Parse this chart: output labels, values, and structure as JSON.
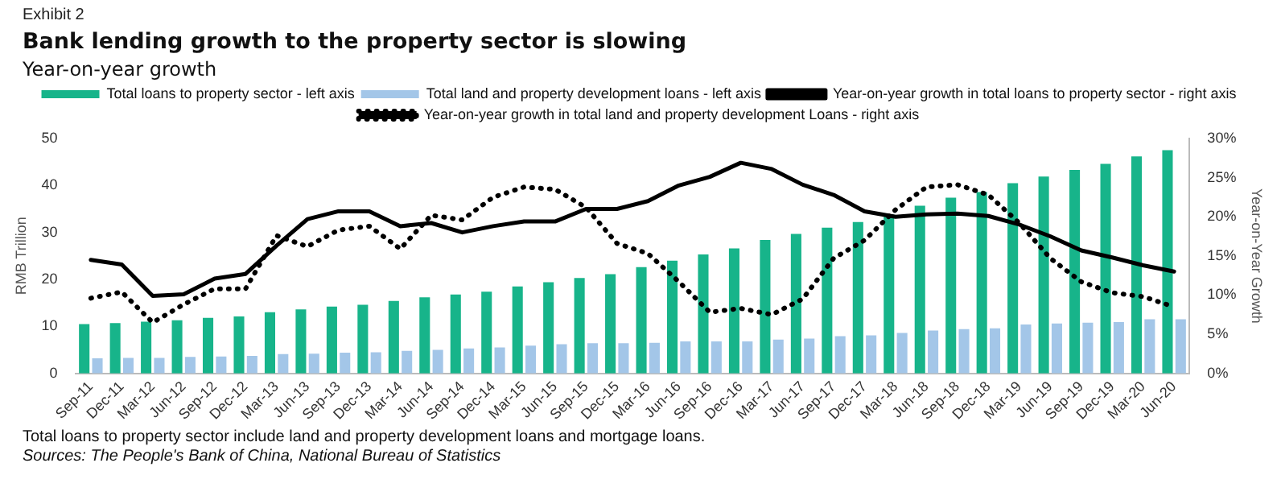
{
  "chart_data": {
    "type": "bar",
    "title": "Bank lending growth to the property sector is slowing",
    "subtitle": "Year-on-year growth",
    "ylabel": "RMB Trillion",
    "y2label": "Year-on-Year Growth",
    "annotations": [
      "Exhibit 2",
      "Total loans to property sector include land and property development loans and mortgage loans.",
      "Sources: The People's Bank of China, National Bureau of Statistics"
    ],
    "categories": [
      "Sep-11",
      "Dec-11",
      "Mar-12",
      "Jun-12",
      "Sep-12",
      "Dec-12",
      "Mar-13",
      "Jun-13",
      "Sep-13",
      "Dec-13",
      "Mar-14",
      "Jun-14",
      "Sep-14",
      "Dec-14",
      "Mar-15",
      "Jun-15",
      "Sep-15",
      "Dec-15",
      "Mar-16",
      "Jun-16",
      "Sep-16",
      "Dec-16",
      "Mar-17",
      "Jun-17",
      "Sep-17",
      "Dec-17",
      "Mar-18",
      "Jun-18",
      "Sep-18",
      "Dec-18",
      "Mar-19",
      "Jun-19",
      "Sep-19",
      "Dec-19",
      "Mar-20",
      "Jun-20"
    ],
    "series": [
      {
        "name": "Total loans to property sector - left axis",
        "color": "#17b48a",
        "values": [
          10.5,
          10.7,
          11,
          11.3,
          11.8,
          12.1,
          13,
          13.6,
          14.2,
          14.6,
          15.4,
          16.2,
          16.8,
          17.4,
          18.5,
          19.4,
          20.3,
          21.1,
          22.6,
          24,
          25.3,
          26.6,
          28.4,
          29.7,
          31,
          32.2,
          33.8,
          35.7,
          37.4,
          38.6,
          40.5,
          41.9,
          43.3,
          44.6,
          46.2,
          47.5
        ]
      },
      {
        "name": "Total land and property development loans - left axis",
        "color": "#a3c6e8",
        "values": [
          3.2,
          3.3,
          3.3,
          3.5,
          3.6,
          3.7,
          4.1,
          4.2,
          4.4,
          4.5,
          4.8,
          5,
          5.3,
          5.5,
          5.9,
          6.2,
          6.4,
          6.4,
          6.5,
          6.8,
          6.8,
          6.8,
          7.2,
          7.4,
          7.9,
          8.1,
          8.6,
          9.1,
          9.4,
          9.6,
          10.4,
          10.6,
          10.8,
          10.9,
          11.5,
          11.5
        ]
      },
      {
        "name": "Year-on-year growth in total loans to property sector - right axis",
        "type": "line",
        "axis": "y2",
        "color": "#000000",
        "line_style": "solid",
        "values": [
          14.5,
          13.9,
          9.9,
          10.1,
          12.1,
          12.7,
          16.3,
          19.7,
          20.7,
          20.7,
          18.8,
          19.2,
          18,
          18.8,
          19.4,
          19.4,
          21,
          21,
          22,
          24,
          25.1,
          26.9,
          26.1,
          24.1,
          22.8,
          20.7,
          20,
          20.3,
          20.4,
          20.1,
          19,
          17.5,
          15.7,
          14.8,
          13.8,
          13
        ]
      },
      {
        "name": "Year-on-year growth in total land and property development Loans - right axis",
        "type": "line",
        "axis": "y2",
        "color": "#000000",
        "line_style": "dotted",
        "values": [
          9.6,
          10.4,
          6.5,
          8.8,
          10.8,
          10.8,
          17.6,
          16.2,
          18.3,
          18.8,
          15.9,
          20.2,
          19.6,
          22.5,
          23.8,
          23.5,
          21.2,
          16.6,
          15.3,
          11.7,
          7.8,
          8.3,
          7.5,
          9.5,
          14.7,
          17,
          20.9,
          23.8,
          24.1,
          22.8,
          19.2,
          14.7,
          11.7,
          10.3,
          9.8,
          8.5
        ]
      }
    ],
    "ylim": [
      0,
      50
    ],
    "yticks": [
      0,
      10,
      20,
      30,
      40,
      50
    ],
    "y2lim": [
      0,
      30
    ],
    "y2ticks": [
      {
        "value": 0,
        "label": "0%"
      },
      {
        "value": 5,
        "label": "5%"
      },
      {
        "value": 10,
        "label": "10%"
      },
      {
        "value": 15,
        "label": "15%"
      },
      {
        "value": 20,
        "label": "20%"
      },
      {
        "value": 25,
        "label": "25%"
      },
      {
        "value": 30,
        "label": "30%"
      }
    ],
    "marker": "none",
    "grid": false,
    "legend": "top"
  }
}
